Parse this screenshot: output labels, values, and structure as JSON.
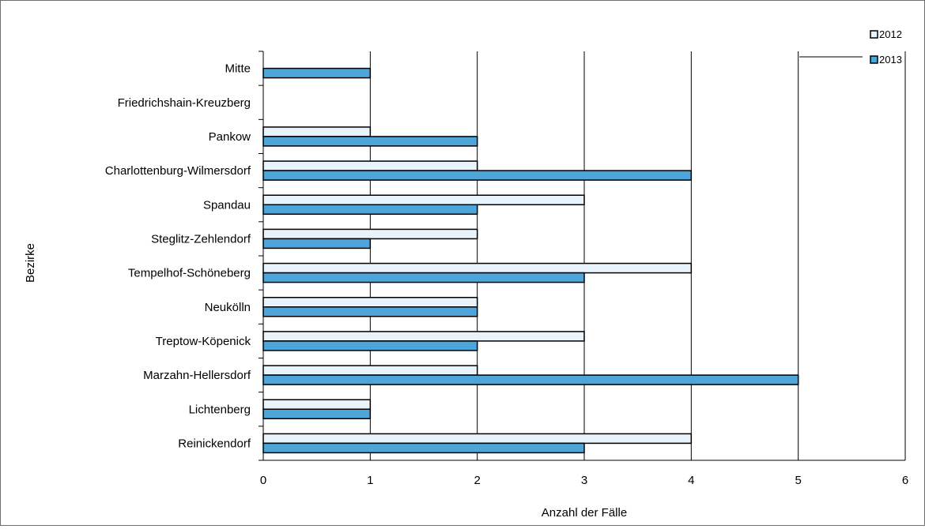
{
  "chart_data": {
    "type": "bar",
    "orientation": "horizontal",
    "categories": [
      "Mitte",
      "Friedrichshain-Kreuzberg",
      "Pankow",
      "Charlottenburg-Wilmersdorf",
      "Spandau",
      "Steglitz-Zehlendorf",
      "Tempelhof-Schöneberg",
      "Neukölln",
      "Treptow-Köpenick",
      "Marzahn-Hellersdorf",
      "Lichtenberg",
      "Reinickendorf"
    ],
    "series": [
      {
        "name": "2012",
        "color": "#e9f3fb",
        "values": [
          0,
          0,
          1,
          2,
          3,
          2,
          4,
          2,
          3,
          2,
          1,
          4
        ]
      },
      {
        "name": "2013",
        "color": "#4ea5d9",
        "values": [
          1,
          0,
          2,
          4,
          2,
          1,
          3,
          2,
          2,
          5,
          1,
          3
        ]
      }
    ],
    "xlabel": "Anzahl der Fälle",
    "ylabel": "Bezirke",
    "xlim": [
      0,
      6
    ],
    "x_ticks": [
      "0",
      "1",
      "2",
      "3",
      "4",
      "5",
      "6"
    ],
    "grid": "vertical",
    "legend_position": "top-right"
  }
}
